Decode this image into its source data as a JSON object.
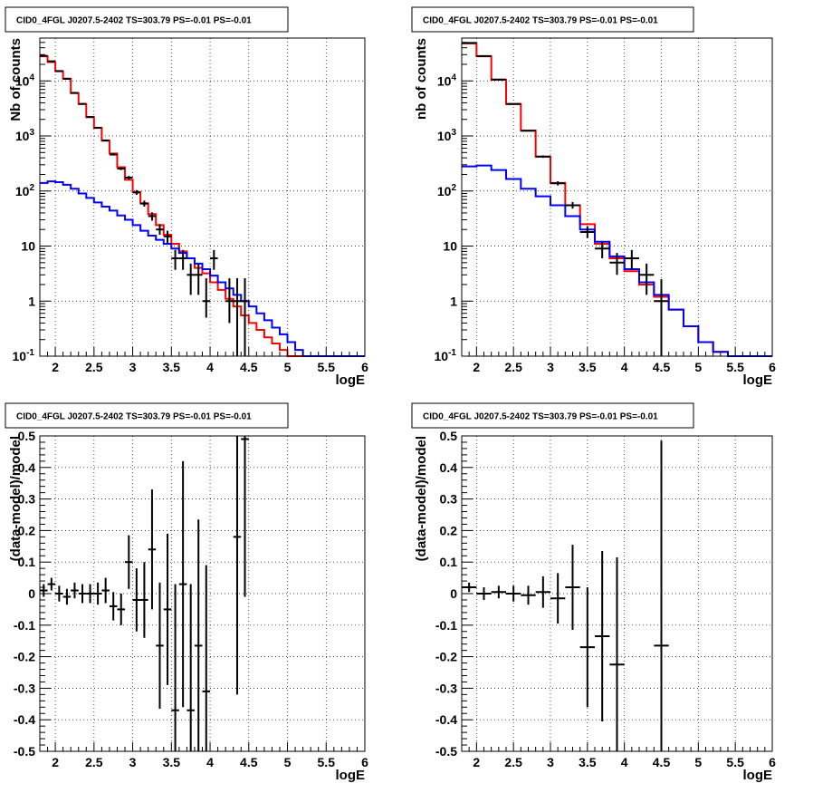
{
  "chart_data": [
    {
      "type": "step-histogram",
      "title": "CID0_4FGL J0207.5-2402 TS=303.79 PS=-0.01 PS=-0.01",
      "xlabel": "logE",
      "ylabel": "Nb of counts",
      "xlim": [
        1.8,
        6
      ],
      "ylim": [
        0.1,
        60000
      ],
      "yscale": "log",
      "grid": true,
      "x_ticks": [
        "2",
        "2.5",
        "3",
        "3.5",
        "4",
        "4.5",
        "5",
        "5.5",
        "6"
      ],
      "y_ticks": [
        "10^-1",
        "1",
        "10",
        "10^2",
        "10^3",
        "10^4"
      ],
      "bin_edges": [
        1.8,
        1.9,
        2.0,
        2.1,
        2.2,
        2.3,
        2.4,
        2.5,
        2.6,
        2.7,
        2.8,
        2.9,
        3.0,
        3.1,
        3.2,
        3.3,
        3.4,
        3.5,
        3.6,
        3.7,
        3.8,
        3.9,
        4.0,
        4.1,
        4.2,
        4.3,
        4.4,
        4.5,
        4.6,
        4.7,
        4.8,
        4.9,
        5.0,
        5.1,
        5.2,
        5.3,
        5.4,
        5.5,
        5.6,
        5.7,
        5.8,
        5.9,
        6.0
      ],
      "series": [
        {
          "color": "#ff0000",
          "values": [
            28000,
            22000,
            15000,
            11000,
            6000,
            3800,
            2200,
            1400,
            820,
            480,
            270,
            160,
            96,
            60,
            38,
            24,
            16,
            11,
            8,
            6,
            4,
            3.2,
            2.2,
            1.6,
            1.1,
            0.8,
            0.55,
            0.4,
            0.3,
            0.22,
            0.17,
            0.13,
            0.1,
            0.1,
            0.1,
            0.1,
            0.1,
            0.1,
            0.1,
            0.1,
            0.1,
            0.1
          ]
        },
        {
          "color": "#0000ff",
          "values": [
            140,
            150,
            145,
            130,
            110,
            90,
            75,
            62,
            52,
            44,
            36,
            30,
            24,
            19,
            15.5,
            13,
            11,
            9,
            7.5,
            6,
            4.8,
            3.8,
            2.9,
            2.2,
            1.7,
            1.3,
            1.0,
            0.8,
            0.6,
            0.45,
            0.33,
            0.25,
            0.18,
            0.13,
            0.1,
            0.1,
            0.1,
            0.1,
            0.1,
            0.1,
            0.1,
            0.1
          ]
        },
        {
          "color": "#000000",
          "kind": "points",
          "points": [
            {
              "x": 1.85,
              "y": 28500,
              "xerr": 0.05,
              "ylo": 28200,
              "yhi": 28800
            },
            {
              "x": 1.95,
              "y": 22700,
              "xerr": 0.05,
              "ylo": 22400,
              "yhi": 23000
            },
            {
              "x": 2.05,
              "y": 15100,
              "xerr": 0.05,
              "ylo": 14900,
              "yhi": 15300
            },
            {
              "x": 2.15,
              "y": 10900,
              "xerr": 0.05,
              "ylo": 10750,
              "yhi": 11050
            },
            {
              "x": 2.25,
              "y": 6060,
              "xerr": 0.05,
              "ylo": 5980,
              "yhi": 6140
            },
            {
              "x": 2.35,
              "y": 3820,
              "xerr": 0.05,
              "ylo": 3760,
              "yhi": 3880
            },
            {
              "x": 2.45,
              "y": 2210,
              "xerr": 0.05,
              "ylo": 2160,
              "yhi": 2260
            },
            {
              "x": 2.55,
              "y": 1410,
              "xerr": 0.05,
              "ylo": 1370,
              "yhi": 1450
            },
            {
              "x": 2.65,
              "y": 830,
              "xerr": 0.05,
              "ylo": 800,
              "yhi": 860
            },
            {
              "x": 2.75,
              "y": 460,
              "xerr": 0.05,
              "ylo": 440,
              "yhi": 480
            },
            {
              "x": 2.85,
              "y": 255,
              "xerr": 0.05,
              "ylo": 240,
              "yhi": 270
            },
            {
              "x": 2.95,
              "y": 175,
              "xerr": 0.05,
              "ylo": 162,
              "yhi": 188
            },
            {
              "x": 3.05,
              "y": 94,
              "xerr": 0.05,
              "ylo": 85,
              "yhi": 104
            },
            {
              "x": 3.15,
              "y": 59,
              "xerr": 0.05,
              "ylo": 52,
              "yhi": 67
            },
            {
              "x": 3.25,
              "y": 35,
              "xerr": 0.05,
              "ylo": 29,
              "yhi": 41
            },
            {
              "x": 3.35,
              "y": 20,
              "xerr": 0.05,
              "ylo": 16,
              "yhi": 25
            },
            {
              "x": 3.45,
              "y": 15,
              "xerr": 0.05,
              "ylo": 11,
              "yhi": 19
            },
            {
              "x": 3.55,
              "y": 6,
              "xerr": 0.05,
              "ylo": 3.7,
              "yhi": 8.5
            },
            {
              "x": 3.65,
              "y": 6,
              "xerr": 0.05,
              "ylo": 3.7,
              "yhi": 8.5
            },
            {
              "x": 3.75,
              "y": 3,
              "xerr": 0.05,
              "ylo": 1.3,
              "yhi": 4.8
            },
            {
              "x": 3.85,
              "y": 3,
              "xerr": 0.05,
              "ylo": 1.3,
              "yhi": 4.8
            },
            {
              "x": 3.95,
              "y": 1,
              "xerr": 0.05,
              "ylo": 0.5,
              "yhi": 2.6
            },
            {
              "x": 4.05,
              "y": 6,
              "xerr": 0.05,
              "ylo": 3.7,
              "yhi": 8.5
            },
            {
              "x": 4.25,
              "y": 1,
              "xerr": 0.05,
              "ylo": 0.4,
              "yhi": 2.6
            },
            {
              "x": 4.35,
              "y": 1,
              "xerr": 0.05,
              "ylo": 0.1,
              "yhi": 2.6
            },
            {
              "x": 4.45,
              "y": 1,
              "xerr": 0.05,
              "ylo": 0.1,
              "yhi": 2.6
            }
          ]
        }
      ]
    },
    {
      "type": "step-histogram",
      "title": "CID0_4FGL J0207.5-2402 TS=303.79 PS=-0.01 PS=-0.01",
      "xlabel": "logE",
      "ylabel": "nb of counts",
      "xlim": [
        1.8,
        6
      ],
      "ylim": [
        0.1,
        60000
      ],
      "yscale": "log",
      "grid": true,
      "x_ticks": [
        "2",
        "2.5",
        "3",
        "3.5",
        "4",
        "4.5",
        "5",
        "5.5",
        "6"
      ],
      "y_ticks": [
        "10^-1",
        "1",
        "10",
        "10^2",
        "10^3",
        "10^4"
      ],
      "bin_edges": [
        1.8,
        2.0,
        2.2,
        2.4,
        2.6,
        2.8,
        3.0,
        3.2,
        3.4,
        3.6,
        3.8,
        4.0,
        4.2,
        4.4,
        4.6,
        4.8,
        5.0,
        5.2,
        5.4,
        5.6,
        5.8,
        6.0
      ],
      "series": [
        {
          "color": "#ff0000",
          "values": [
            48000,
            28000,
            10500,
            3800,
            1250,
            420,
            140,
            55,
            25,
            11,
            6,
            3.5,
            2.0,
            1.2,
            0.7,
            0.35,
            0.18,
            0.12,
            0.1,
            0.1,
            0.1
          ]
        },
        {
          "color": "#0000ff",
          "values": [
            280,
            290,
            240,
            165,
            110,
            80,
            55,
            35,
            20,
            12,
            6.5,
            3.8,
            2.2,
            1.3,
            0.7,
            0.35,
            0.18,
            0.12,
            0.1,
            0.1,
            0.1
          ]
        },
        {
          "color": "#000000",
          "kind": "points",
          "points": [
            {
              "x": 1.9,
              "y": 49000,
              "xerr": 0.1,
              "ylo": 48600,
              "yhi": 49400
            },
            {
              "x": 2.1,
              "y": 28200,
              "xerr": 0.1,
              "ylo": 27900,
              "yhi": 28500
            },
            {
              "x": 2.3,
              "y": 10600,
              "xerr": 0.1,
              "ylo": 10400,
              "yhi": 10800
            },
            {
              "x": 2.5,
              "y": 3810,
              "xerr": 0.1,
              "ylo": 3740,
              "yhi": 3880
            },
            {
              "x": 2.7,
              "y": 1245,
              "xerr": 0.1,
              "ylo": 1210,
              "yhi": 1280
            },
            {
              "x": 2.9,
              "y": 422,
              "xerr": 0.1,
              "ylo": 400,
              "yhi": 444
            },
            {
              "x": 3.1,
              "y": 138,
              "xerr": 0.1,
              "ylo": 126,
              "yhi": 150
            },
            {
              "x": 3.3,
              "y": 55,
              "xerr": 0.1,
              "ylo": 48,
              "yhi": 63
            },
            {
              "x": 3.5,
              "y": 18,
              "xerr": 0.1,
              "ylo": 14,
              "yhi": 23
            },
            {
              "x": 3.7,
              "y": 9,
              "xerr": 0.1,
              "ylo": 6,
              "yhi": 12
            },
            {
              "x": 3.9,
              "y": 5,
              "xerr": 0.1,
              "ylo": 3,
              "yhi": 7.5
            },
            {
              "x": 4.1,
              "y": 6,
              "xerr": 0.1,
              "ylo": 3.7,
              "yhi": 8.5
            },
            {
              "x": 4.3,
              "y": 3,
              "xerr": 0.1,
              "ylo": 1.3,
              "yhi": 4.8
            },
            {
              "x": 4.5,
              "y": 1,
              "xerr": 0.1,
              "ylo": 0.1,
              "yhi": 2.5
            }
          ]
        }
      ]
    },
    {
      "type": "scatter",
      "title": "CID0_4FGL J0207.5-2402 TS=303.79 PS=-0.01 PS=-0.01",
      "xlabel": "logE",
      "ylabel": "(data-model)/model",
      "xlim": [
        1.8,
        6
      ],
      "ylim": [
        -0.5,
        0.5
      ],
      "grid": true,
      "x_ticks": [
        "2",
        "2.5",
        "3",
        "3.5",
        "4",
        "4.5",
        "5",
        "5.5",
        "6"
      ],
      "y_ticks": [
        "-0.5",
        "-0.4",
        "-0.3",
        "-0.2",
        "-0.1",
        "0",
        "0.1",
        "0.2",
        "0.3",
        "0.4",
        "0.5"
      ],
      "series": [
        {
          "color": "#000000",
          "points": [
            {
              "x": 1.85,
              "y": 0.01,
              "xerr": 0.05,
              "yerr": 0.02
            },
            {
              "x": 1.95,
              "y": 0.03,
              "xerr": 0.05,
              "yerr": 0.02
            },
            {
              "x": 2.05,
              "y": 0.0,
              "xerr": 0.05,
              "yerr": 0.025
            },
            {
              "x": 2.15,
              "y": -0.01,
              "xerr": 0.05,
              "yerr": 0.025
            },
            {
              "x": 2.25,
              "y": 0.01,
              "xerr": 0.05,
              "yerr": 0.025
            },
            {
              "x": 2.35,
              "y": 0.0,
              "xerr": 0.05,
              "yerr": 0.03
            },
            {
              "x": 2.45,
              "y": 0.0,
              "xerr": 0.05,
              "yerr": 0.03
            },
            {
              "x": 2.55,
              "y": 0.0,
              "xerr": 0.05,
              "yerr": 0.035
            },
            {
              "x": 2.65,
              "y": 0.01,
              "xerr": 0.05,
              "yerr": 0.04
            },
            {
              "x": 2.75,
              "y": -0.04,
              "xerr": 0.05,
              "yerr": 0.045
            },
            {
              "x": 2.85,
              "y": -0.05,
              "xerr": 0.05,
              "yerr": 0.05
            },
            {
              "x": 2.95,
              "y": 0.1,
              "xerr": 0.05,
              "yerr": 0.085
            },
            {
              "x": 3.05,
              "y": -0.02,
              "xerr": 0.05,
              "yerr": 0.1
            },
            {
              "x": 3.15,
              "y": -0.02,
              "xerr": 0.05,
              "yerr": 0.12
            },
            {
              "x": 3.25,
              "y": 0.14,
              "xerr": 0.05,
              "yerr": 0.19
            },
            {
              "x": 3.35,
              "y": -0.165,
              "xerr": 0.05,
              "yerr": 0.2
            },
            {
              "x": 3.45,
              "y": -0.05,
              "xerr": 0.05,
              "yerr": 0.24
            },
            {
              "x": 3.55,
              "y": -0.37,
              "xerr": 0.05,
              "yerr": 0.4
            },
            {
              "x": 3.65,
              "y": 0.03,
              "xerr": 0.05,
              "yerr": 0.39
            },
            {
              "x": 3.75,
              "y": -0.37,
              "xerr": 0.05,
              "yerr": 0.4
            },
            {
              "x": 3.85,
              "y": -0.165,
              "xerr": 0.05,
              "yerr": 0.4
            },
            {
              "x": 3.95,
              "y": -0.31,
              "xerr": 0.05,
              "yerr": 0.4
            },
            {
              "x": 4.35,
              "y": 0.18,
              "xerr": 0.05,
              "yerr": 0.5
            },
            {
              "x": 4.45,
              "y": 0.49,
              "xerr": 0.05,
              "yerr": 0.5
            }
          ]
        }
      ]
    },
    {
      "type": "scatter",
      "title": "CID0_4FGL J0207.5-2402 TS=303.79 PS=-0.01 PS=-0.01",
      "xlabel": "logE",
      "ylabel": "(data-model)/model",
      "xlim": [
        1.8,
        6
      ],
      "ylim": [
        -0.5,
        0.5
      ],
      "grid": true,
      "x_ticks": [
        "2",
        "2.5",
        "3",
        "3.5",
        "4",
        "4.5",
        "5",
        "5.5",
        "6"
      ],
      "y_ticks": [
        "-0.5",
        "-0.4",
        "-0.3",
        "-0.2",
        "-0.1",
        "0",
        "0.1",
        "0.2",
        "0.3",
        "0.4",
        "0.5"
      ],
      "series": [
        {
          "color": "#000000",
          "points": [
            {
              "x": 1.9,
              "y": 0.02,
              "xerr": 0.1,
              "yerr": 0.015
            },
            {
              "x": 2.1,
              "y": 0.0,
              "xerr": 0.1,
              "yerr": 0.02
            },
            {
              "x": 2.3,
              "y": 0.005,
              "xerr": 0.1,
              "yerr": 0.02
            },
            {
              "x": 2.5,
              "y": 0.0,
              "xerr": 0.1,
              "yerr": 0.025
            },
            {
              "x": 2.7,
              "y": -0.005,
              "xerr": 0.1,
              "yerr": 0.03
            },
            {
              "x": 2.9,
              "y": 0.005,
              "xerr": 0.1,
              "yerr": 0.05
            },
            {
              "x": 3.1,
              "y": -0.015,
              "xerr": 0.1,
              "yerr": 0.08
            },
            {
              "x": 3.3,
              "y": 0.02,
              "xerr": 0.1,
              "yerr": 0.135
            },
            {
              "x": 3.5,
              "y": -0.17,
              "xerr": 0.1,
              "yerr": 0.19
            },
            {
              "x": 3.7,
              "y": -0.135,
              "xerr": 0.1,
              "yerr": 0.27
            },
            {
              "x": 3.9,
              "y": -0.225,
              "xerr": 0.1,
              "yerr": 0.34
            },
            {
              "x": 4.5,
              "y": -0.165,
              "xerr": 0.1,
              "yerr": 0.65
            }
          ]
        }
      ]
    }
  ]
}
